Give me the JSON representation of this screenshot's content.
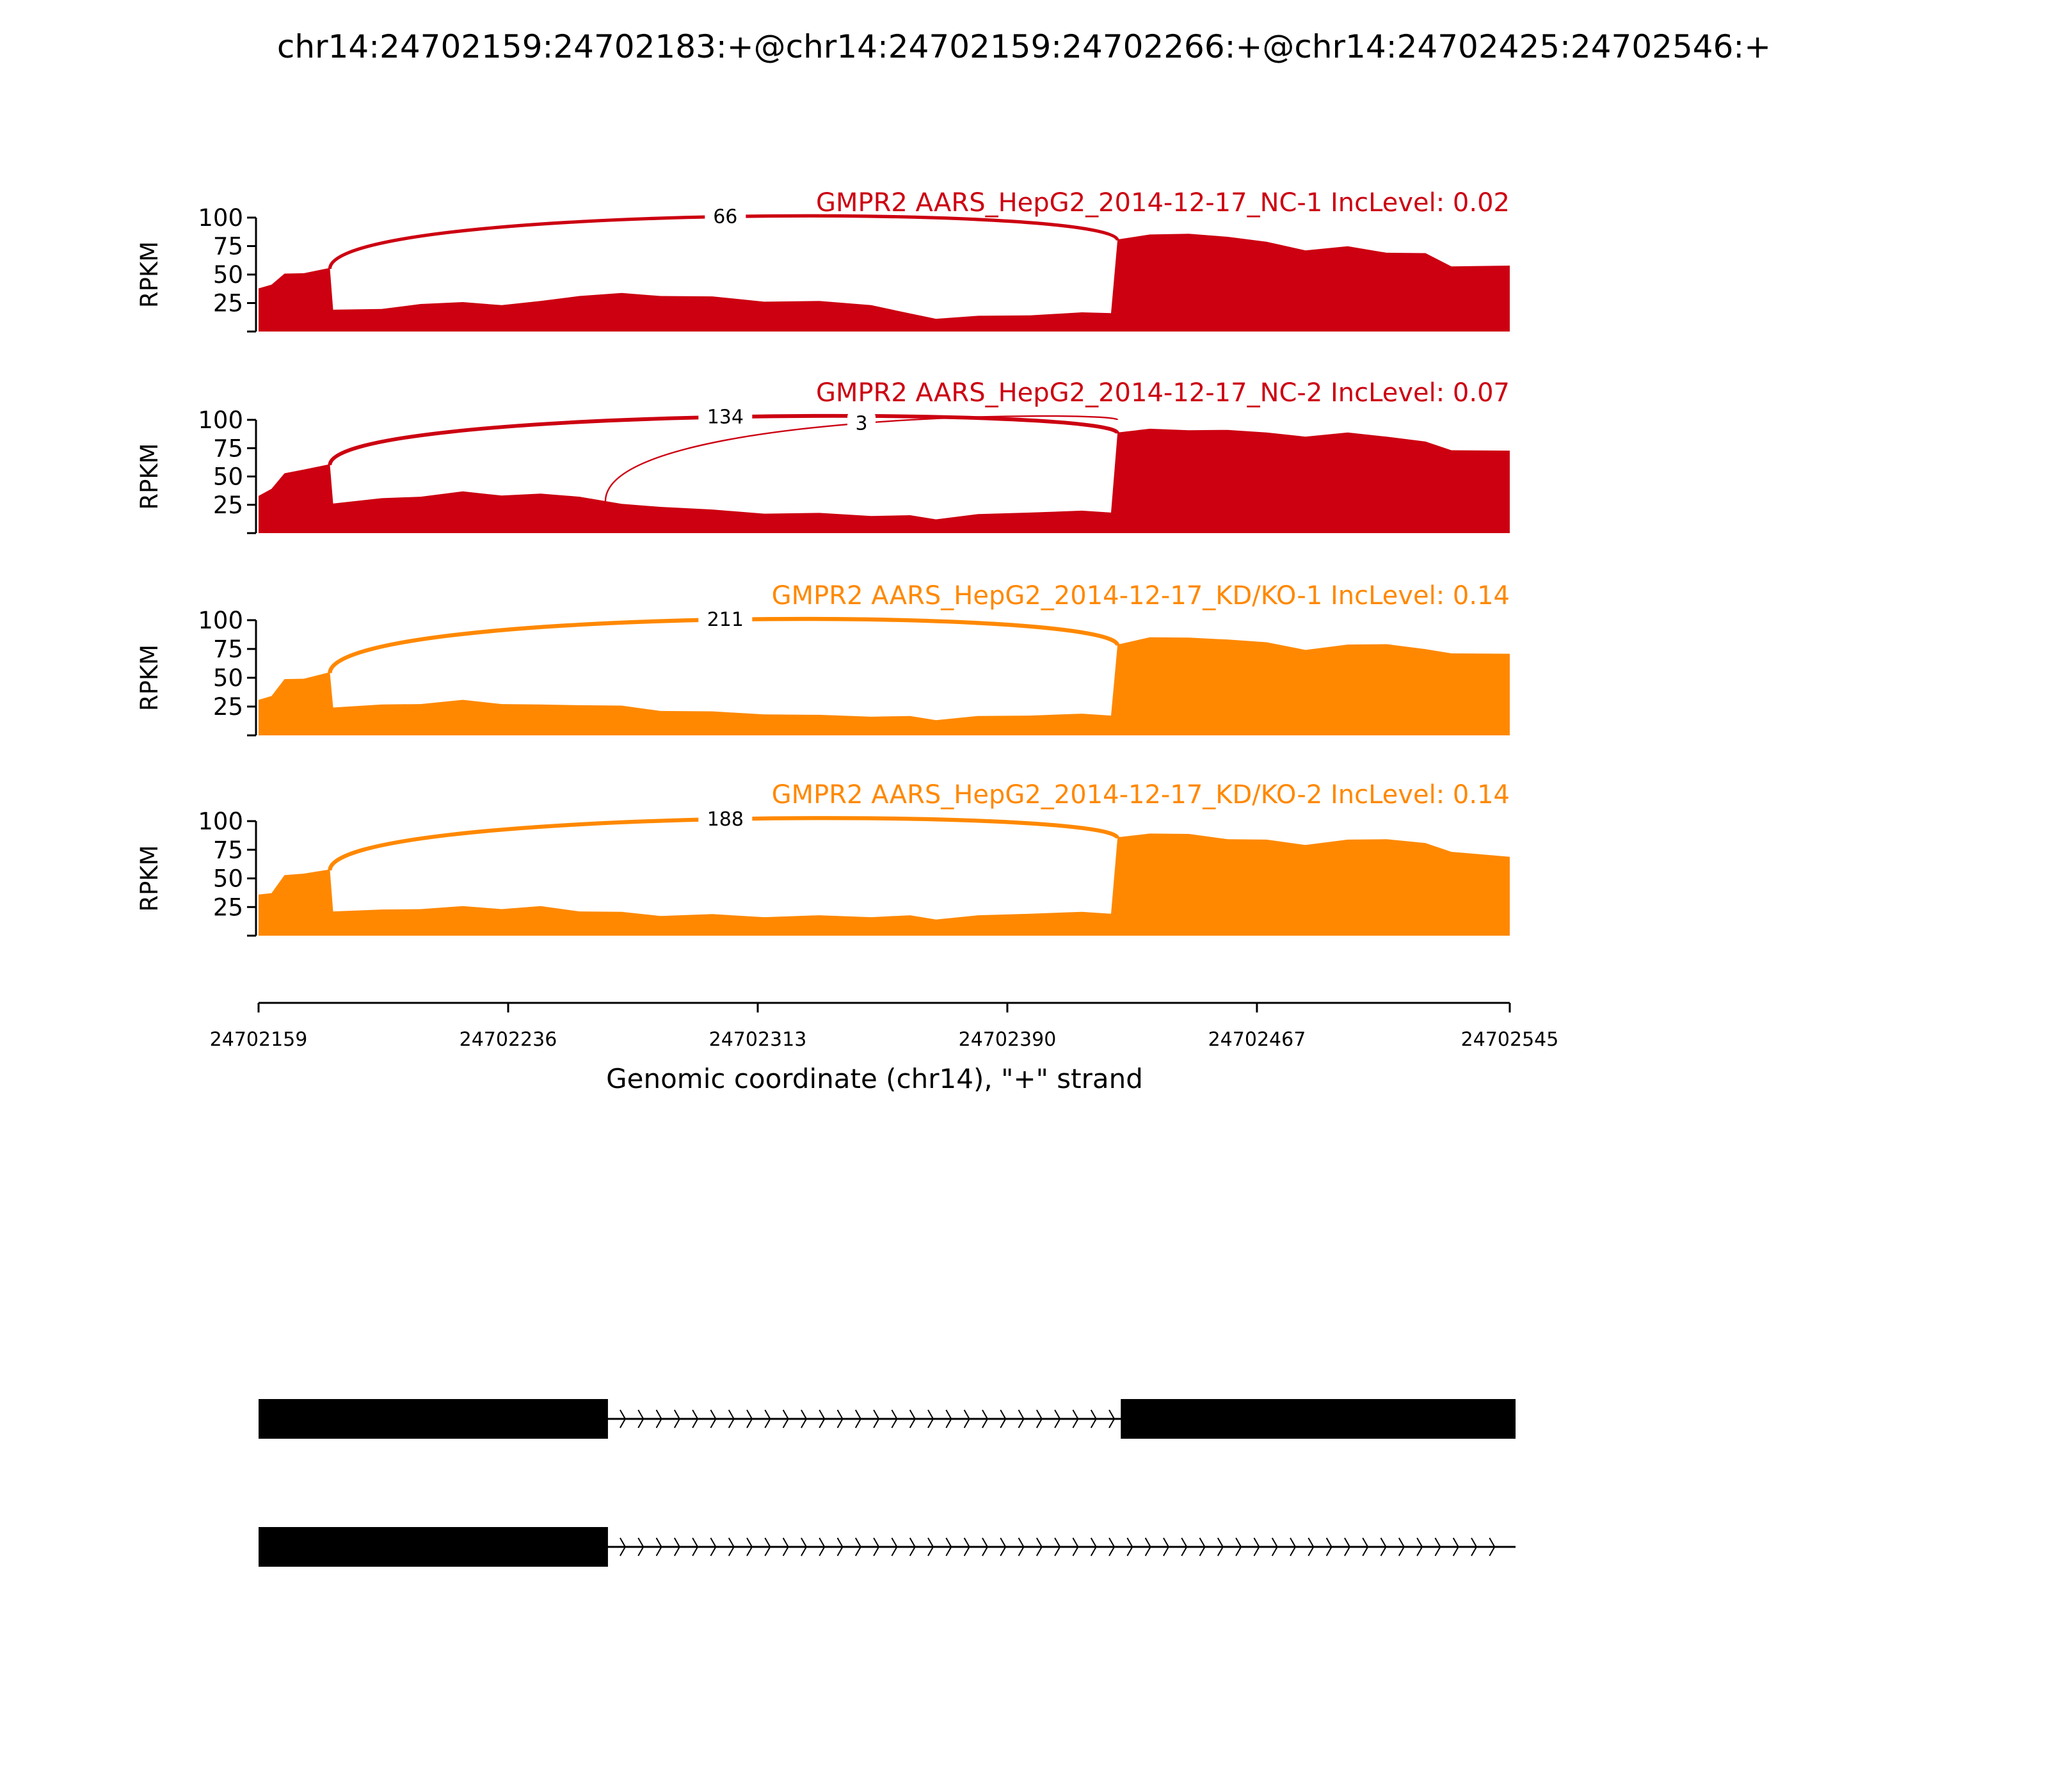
{
  "title": "chr14:24702159:24702183:+@chr14:24702159:24702266:+@chr14:24702425:24702546:+",
  "chart_data": {
    "type": "area",
    "subtype": "sashimi",
    "xlabel": "Genomic coordinate (chr14), \"+\" strand",
    "xlim": [
      24702159,
      24702545
    ],
    "xticks": [
      "24702159",
      "24702236",
      "24702313",
      "24702390",
      "24702467",
      "24702545"
    ],
    "ylabel": "RPKM",
    "ylim": [
      0,
      100
    ],
    "yticks": [
      "25",
      "50",
      "75",
      "100"
    ],
    "positions": [
      24702159,
      24702163,
      24702167,
      24702173,
      24702181,
      24702182,
      24702197,
      24702209,
      24702222,
      24702234,
      24702246,
      24702258,
      24702271,
      24702283,
      24702299,
      24702315,
      24702332,
      24702348,
      24702360,
      24702368,
      24702381,
      24702397,
      24702413,
      24702422,
      24702424,
      24702434,
      24702446,
      24702458,
      24702470,
      24702482,
      24702495,
      24702507,
      24702519,
      24702527,
      24702545
    ],
    "tracks": [
      {
        "name": "GMPR2 AARS_HepG2_2014-12-17_NC-1 IncLevel: 0.02",
        "color": "#CC0011",
        "values": [
          37,
          42,
          50,
          52,
          55,
          20,
          19,
          25,
          25,
          24,
          26,
          32,
          33,
          32,
          30,
          27,
          26,
          24,
          15,
          12,
          13,
          15,
          16,
          17,
          80,
          86,
          85,
          84,
          78,
          72,
          74,
          70,
          68,
          58,
          57
        ],
        "junctions": [
          {
            "start": 24702181,
            "end": 24702424,
            "count": "66"
          }
        ]
      },
      {
        "name": "GMPR2 AARS_HepG2_2014-12-17_NC-2 IncLevel: 0.07",
        "color": "#CC0011",
        "values": [
          32,
          40,
          52,
          57,
          60,
          27,
          30,
          33,
          36,
          34,
          34,
          33,
          25,
          24,
          20,
          18,
          17,
          16,
          15,
          13,
          16,
          19,
          19,
          19,
          88,
          93,
          90,
          92,
          88,
          86,
          88,
          86,
          80,
          74,
          72
        ],
        "junctions": [
          {
            "start": 24702181,
            "end": 24702424,
            "count": "134"
          },
          {
            "start": 24702266,
            "end": 24702424,
            "count": "3"
          }
        ]
      },
      {
        "name": "GMPR2 AARS_HepG2_2014-12-17_KD/KO-1 IncLevel: 0.14",
        "color": "#FF8800",
        "values": [
          30,
          35,
          48,
          50,
          54,
          25,
          26,
          28,
          30,
          28,
          26,
          27,
          25,
          22,
          20,
          19,
          17,
          17,
          16,
          14,
          16,
          18,
          18,
          18,
          78,
          86,
          84,
          84,
          80,
          75,
          78,
          80,
          74,
          72,
          70
        ],
        "junctions": [
          {
            "start": 24702181,
            "end": 24702424,
            "count": "211"
          }
        ]
      },
      {
        "name": "GMPR2 AARS_HepG2_2014-12-17_KD/KO-2 IncLevel: 0.14",
        "color": "#FF8800",
        "values": [
          35,
          38,
          52,
          55,
          57,
          22,
          22,
          24,
          25,
          24,
          25,
          22,
          20,
          18,
          18,
          17,
          17,
          17,
          17,
          15,
          17,
          20,
          20,
          20,
          85,
          90,
          88,
          85,
          83,
          80,
          83,
          85,
          80,
          74,
          68
        ],
        "junctions": [
          {
            "start": 24702181,
            "end": 24702424,
            "count": "188"
          }
        ]
      }
    ],
    "transcripts": [
      {
        "exons": [
          [
            24702159,
            24702266
          ],
          [
            24702425,
            24702546
          ]
        ],
        "strand": "+"
      },
      {
        "exons": [
          [
            24702159,
            24702266
          ]
        ],
        "intron_to": 24702546,
        "strand": "+"
      }
    ],
    "grid": false
  }
}
